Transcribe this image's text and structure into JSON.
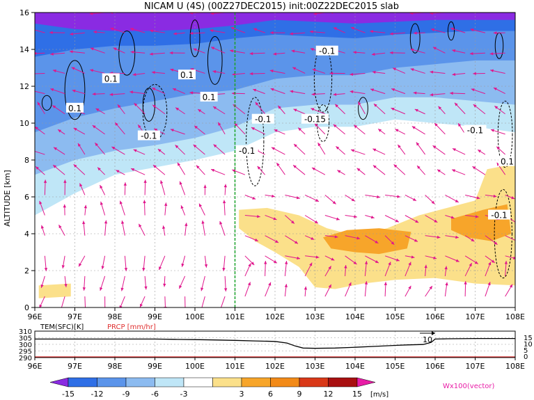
{
  "title": "NICAM U (4S) (00Z27DEC2015) init:00Z22DEC2015 slab",
  "colors": {
    "u_fill": [
      "#8a2be2",
      "#2f6fe6",
      "#5b94ea",
      "#8cbbf0",
      "#bfe6f7",
      "#ffffff",
      "#fbe08a",
      "#f7a52a",
      "#f28a18",
      "#d93818",
      "#a80f10",
      "#e81ca6"
    ],
    "vector": "#e0158c",
    "contour": "#000000",
    "marker_line": "#1aa32a",
    "prcp": "#e03030"
  },
  "chart_data": [
    {
      "type": "heatmap",
      "title": "NICAM U (4S) (00Z27DEC2015) init:00Z22DEC2015 slab",
      "xlabel": "",
      "ylabel": "ALTITUDE [km]",
      "x_ticks": [
        "96E",
        "97E",
        "98E",
        "99E",
        "100E",
        "101E",
        "102E",
        "103E",
        "104E",
        "105E",
        "106E",
        "107E",
        "108E"
      ],
      "y_ticks": [
        "0",
        "2",
        "4",
        "6",
        "8",
        "10",
        "12",
        "14",
        "16"
      ],
      "xlim": [
        96,
        108
      ],
      "ylim": [
        0,
        16
      ],
      "grid": true,
      "marker_lon": 101,
      "contour_labels": [
        "0.1",
        "0.1",
        "0.1",
        "0.1",
        "-0.1",
        "-0.1",
        "-0.15",
        "-0.1",
        "-0.1",
        "-0.1",
        "0.1",
        "-0.1"
      ],
      "colorbar": {
        "ticks": [
          "-15",
          "-12",
          "-9",
          "-6",
          "-3",
          "3",
          "6",
          "9",
          "12",
          "15"
        ],
        "unit": "[m/s]"
      },
      "vector_label": "Wx100(vector)"
    },
    {
      "type": "line",
      "labels": [
        "TEM(SFC)[K]",
        "PRCP [mm/hr]"
      ],
      "x_ticks": [
        "96E",
        "97E",
        "98E",
        "99E",
        "100E",
        "101E",
        "102E",
        "103E",
        "104E",
        "105E",
        "106E",
        "107E",
        "108E"
      ],
      "left_y_ticks": [
        "310",
        "305",
        "300",
        "295",
        "290"
      ],
      "right_y_ticks": [
        "15",
        "10",
        "5",
        "0"
      ],
      "arrow_label": "10",
      "series": [
        {
          "name": "TEM(SFC)[K]",
          "x": [
            96,
            97,
            98,
            99,
            99.5,
            100,
            100.5,
            101,
            101.5,
            102,
            102.3,
            102.5,
            102.7,
            103,
            103.5,
            104,
            104.5,
            105,
            105.3,
            105.7,
            105.9,
            106,
            106.3,
            107,
            108
          ],
          "values": [
            304,
            304,
            304,
            304,
            303.8,
            303.6,
            303.3,
            303.0,
            302.6,
            302.2,
            301.0,
            298.8,
            297.2,
            297.0,
            297.2,
            297.8,
            298.5,
            299.2,
            299.6,
            299.9,
            301.5,
            304,
            304.2,
            304.4,
            304.4
          ]
        },
        {
          "name": "PRCP [mm/hr]",
          "x": [
            96,
            108
          ],
          "values": [
            0,
            0
          ]
        }
      ]
    }
  ]
}
